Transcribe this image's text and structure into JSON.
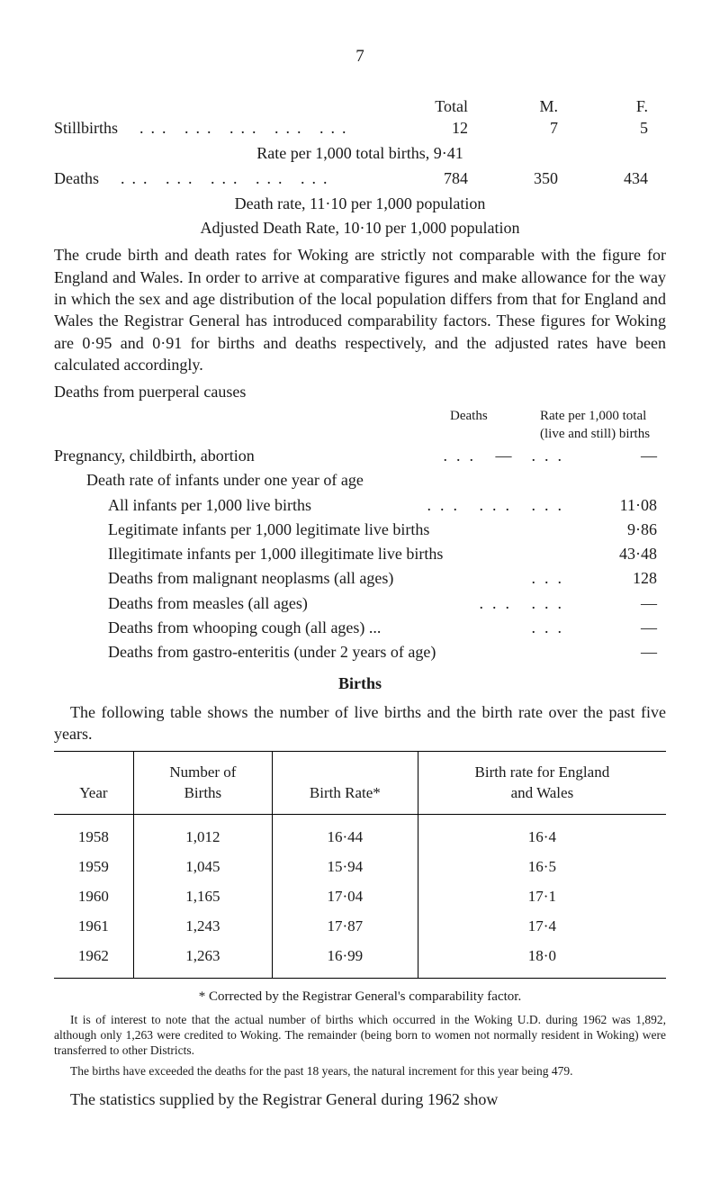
{
  "page_number": "7",
  "top_table": {
    "headers": [
      "Total",
      "M.",
      "F."
    ],
    "rows": [
      {
        "label": "Stillbirths",
        "dots": "...   ...   ...   ...   ...",
        "values": [
          "12",
          "7",
          "5"
        ]
      },
      {
        "centered": "Rate per 1,000 total births, 9·41"
      },
      {
        "label": "Deaths",
        "dots": "...   ...   ...   ...   ...",
        "values": [
          "784",
          "350",
          "434"
        ]
      },
      {
        "centered": "Death rate, 11·10 per 1,000 population"
      },
      {
        "centered": "Adjusted Death Rate, 10·10 per 1,000 population"
      }
    ]
  },
  "body_paragraph": "The crude birth and death rates for Woking are strictly not com­parable with the figure for England and Wales. In order to arrive at comparative figures and make allowance for the way in which the sex and age distribution of the local population differs from that for England and Wales the Registrar General has introduced comparability factors. These figures for Woking are 0·95 and 0·91 for births and deaths respectively, and the adjusted rates have been calculated accordingly.",
  "puerperal_heading": "Deaths from puerperal causes",
  "right_note": {
    "deaths": "Deaths",
    "rate": "Rate per 1,000 total (live and still) births"
  },
  "stats": [
    {
      "label": "Pregnancy, childbirth, abortion",
      "dots": "...   —",
      "dots2": "...",
      "rate": "—",
      "indent": false
    },
    {
      "label": "Death rate of infants under one year of age",
      "indent": true,
      "no_val": true
    },
    {
      "label": "All infants per 1,000 live births",
      "dots": "...   ...   ...",
      "rate": "11·08",
      "indent2": true
    },
    {
      "label": "Legitimate infants per 1,000 legitimate live births",
      "rate": "9·86",
      "indent2": true
    },
    {
      "label": "Illegitimate infants per 1,000 illegitimate live births",
      "rate": "43·48",
      "indent2": true
    },
    {
      "label": "Deaths from malignant neoplasms (all ages)",
      "dots": "...",
      "rate": "128",
      "indent2": true
    },
    {
      "label": "Deaths from measles (all ages)",
      "dots": "...   ...",
      "rate": "—",
      "indent2": true
    },
    {
      "label": "Deaths from whooping cough (all ages) ...",
      "dots": "...",
      "rate": "—",
      "indent2": true
    },
    {
      "label": "Deaths from gastro-enteritis (under 2 years of age)",
      "rate": "—",
      "indent2": true
    }
  ],
  "births_section": {
    "heading": "Births",
    "intro": "The following table shows the number of live births and the birth rate over the past five years.",
    "columns": [
      "Year",
      "Number of\nBirths",
      "Birth Rate*",
      "Birth rate for England\nand Wales"
    ],
    "rows": [
      [
        "1958",
        "1,012",
        "16·44",
        "16·4"
      ],
      [
        "1959",
        "1,045",
        "15·94",
        "16·5"
      ],
      [
        "1960",
        "1,165",
        "17·04",
        "17·1"
      ],
      [
        "1961",
        "1,243",
        "17·87",
        "17·4"
      ],
      [
        "1962",
        "1,263",
        "16·99",
        "18·0"
      ]
    ]
  },
  "footnotes": {
    "asterisk": "* Corrected by the Registrar General's comparability factor.",
    "note1": "It is of interest to note that the actual number of births which occurred in the Woking U.D. during 1962 was 1,892, although only 1,263 were credited to Woking. The remainder (being born to women not normally resident in Woking) were transferred to other Districts.",
    "note2": "The births have exceeded the deaths for the past 18 years, the natural increment for this year being 479."
  },
  "closing": "The statistics supplied by the Registrar General during 1962 show"
}
